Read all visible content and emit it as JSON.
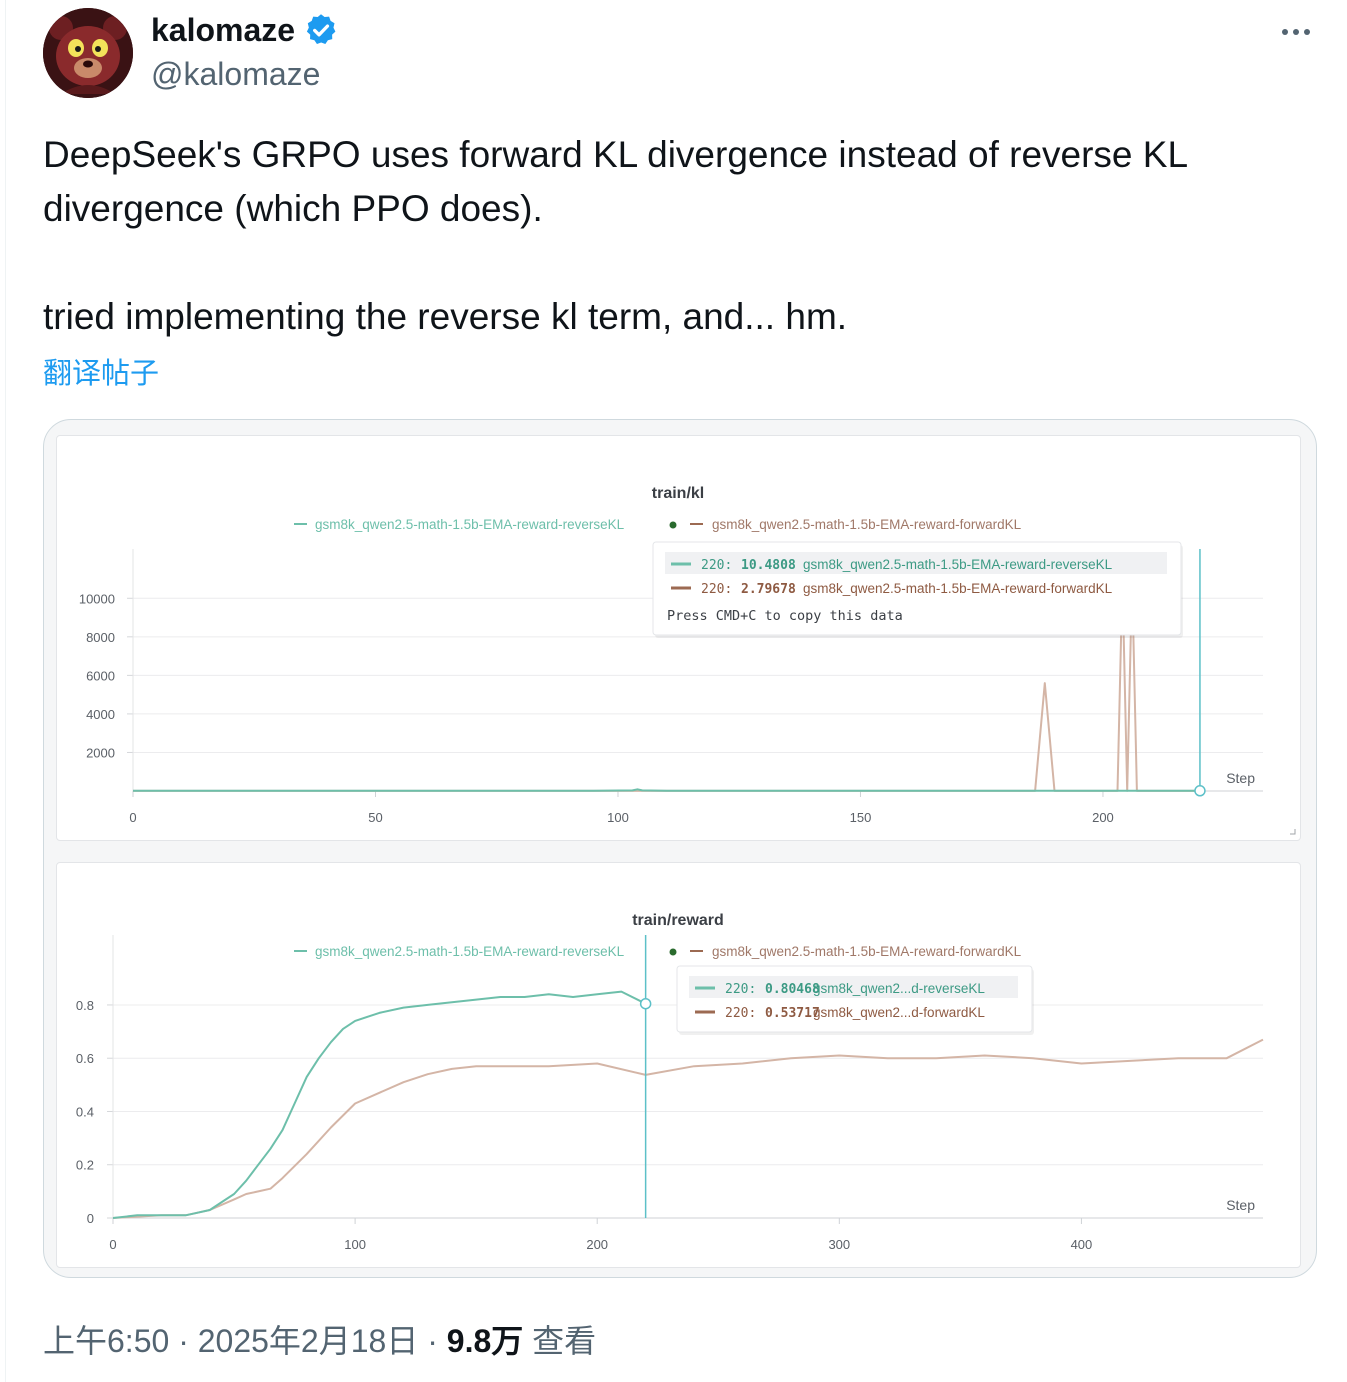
{
  "author": {
    "display_name": "kalomaze",
    "handle": "@kalomaze",
    "verified": true
  },
  "tweet": {
    "line1": "DeepSeek's GRPO uses forward KL divergence instead of reverse KL divergence (which PPO does).",
    "line2": "tried implementing the reverse kl term, and... hm.",
    "translate_label": "翻译帖子"
  },
  "footer": {
    "time": "上午6:50",
    "sep1": " · ",
    "date": "2025年2月18日",
    "sep2": " · ",
    "views": "9.8万",
    "views_label": " 查看"
  },
  "colors": {
    "reverse": "#6dbfaa",
    "forward": "#d4b5a6",
    "cursor": "#5cc0c8",
    "verified": "#1d9bf0"
  },
  "chart_data": [
    {
      "type": "line",
      "title": "train/kl",
      "xlabel": "Step",
      "legend": [
        "gsm8k_qwen2.5-math-1.5b-EMA-reward-reverseKL",
        "gsm8k_qwen2.5-math-1.5b-EMA-reward-forwardKL"
      ],
      "x_ticks": [
        0,
        50,
        100,
        150,
        200
      ],
      "y_ticks": [
        2000,
        4000,
        6000,
        8000,
        10000
      ],
      "xlim": [
        0,
        233
      ],
      "ylim": [
        0,
        11000
      ],
      "cursor_step": 220,
      "series": [
        {
          "name": "gsm8k_qwen2.5-math-1.5b-EMA-reward-reverseKL",
          "x": [
            0,
            95,
            103,
            104,
            105,
            110,
            220
          ],
          "y": [
            10,
            12,
            30,
            90,
            30,
            12,
            10.4808
          ]
        },
        {
          "name": "gsm8k_qwen2.5-math-1.5b-EMA-reward-forwardKL",
          "x": [
            0,
            186,
            188,
            190,
            203,
            204,
            205,
            206,
            207,
            220
          ],
          "y": [
            3,
            5,
            5600,
            5,
            5,
            11000,
            5,
            11000,
            5,
            2.79678
          ]
        }
      ],
      "tooltip": {
        "rows": [
          {
            "step": "220:",
            "value": "10.4808",
            "name": "gsm8k_qwen2.5-math-1.5b-EMA-reward-reverseKL"
          },
          {
            "step": "220:",
            "value": "2.79678",
            "name": "gsm8k_qwen2.5-math-1.5b-EMA-reward-forwardKL"
          }
        ],
        "hint": "Press CMD+C to copy this data"
      }
    },
    {
      "type": "line",
      "title": "train/reward",
      "xlabel": "Step",
      "legend": [
        "gsm8k_qwen2.5-math-1.5b-EMA-reward-reverseKL",
        "gsm8k_qwen2.5-math-1.5b-EMA-reward-forwardKL"
      ],
      "x_ticks": [
        0,
        100,
        200,
        300,
        400
      ],
      "y_ticks": [
        0,
        0.2,
        0.4,
        0.6,
        0.8
      ],
      "xlim": [
        0,
        475
      ],
      "ylim": [
        0,
        0.95
      ],
      "cursor_step": 220,
      "series": [
        {
          "name": "gsm8k_qwen2.5-math-1.5b-EMA-reward-reverseKL",
          "x": [
            0,
            10,
            20,
            30,
            35,
            40,
            45,
            50,
            55,
            60,
            65,
            70,
            75,
            80,
            85,
            90,
            95,
            100,
            110,
            120,
            130,
            140,
            150,
            160,
            170,
            180,
            190,
            200,
            210,
            220
          ],
          "y": [
            0.0,
            0.01,
            0.01,
            0.01,
            0.02,
            0.03,
            0.06,
            0.09,
            0.14,
            0.2,
            0.26,
            0.33,
            0.43,
            0.53,
            0.6,
            0.66,
            0.71,
            0.74,
            0.77,
            0.79,
            0.8,
            0.81,
            0.82,
            0.83,
            0.83,
            0.84,
            0.83,
            0.84,
            0.85,
            0.80468
          ]
        },
        {
          "name": "gsm8k_qwen2.5-math-1.5b-EMA-reward-forwardKL",
          "x": [
            0,
            20,
            30,
            40,
            50,
            55,
            60,
            65,
            70,
            80,
            90,
            100,
            110,
            120,
            130,
            140,
            150,
            160,
            180,
            200,
            220,
            240,
            260,
            280,
            300,
            320,
            340,
            360,
            380,
            400,
            420,
            440,
            460,
            475
          ],
          "y": [
            0.0,
            0.01,
            0.01,
            0.03,
            0.07,
            0.09,
            0.1,
            0.11,
            0.15,
            0.24,
            0.34,
            0.43,
            0.47,
            0.51,
            0.54,
            0.56,
            0.57,
            0.57,
            0.57,
            0.58,
            0.53717,
            0.57,
            0.58,
            0.6,
            0.61,
            0.6,
            0.6,
            0.61,
            0.6,
            0.58,
            0.59,
            0.6,
            0.6,
            0.67
          ]
        }
      ],
      "tooltip": {
        "rows": [
          {
            "step": "220:",
            "value": "0.80468",
            "name": "gsm8k_qwen2...d-reverseKL"
          },
          {
            "step": "220:",
            "value": "0.53717",
            "name": "gsm8k_qwen2...d-forwardKL"
          }
        ]
      }
    }
  ]
}
